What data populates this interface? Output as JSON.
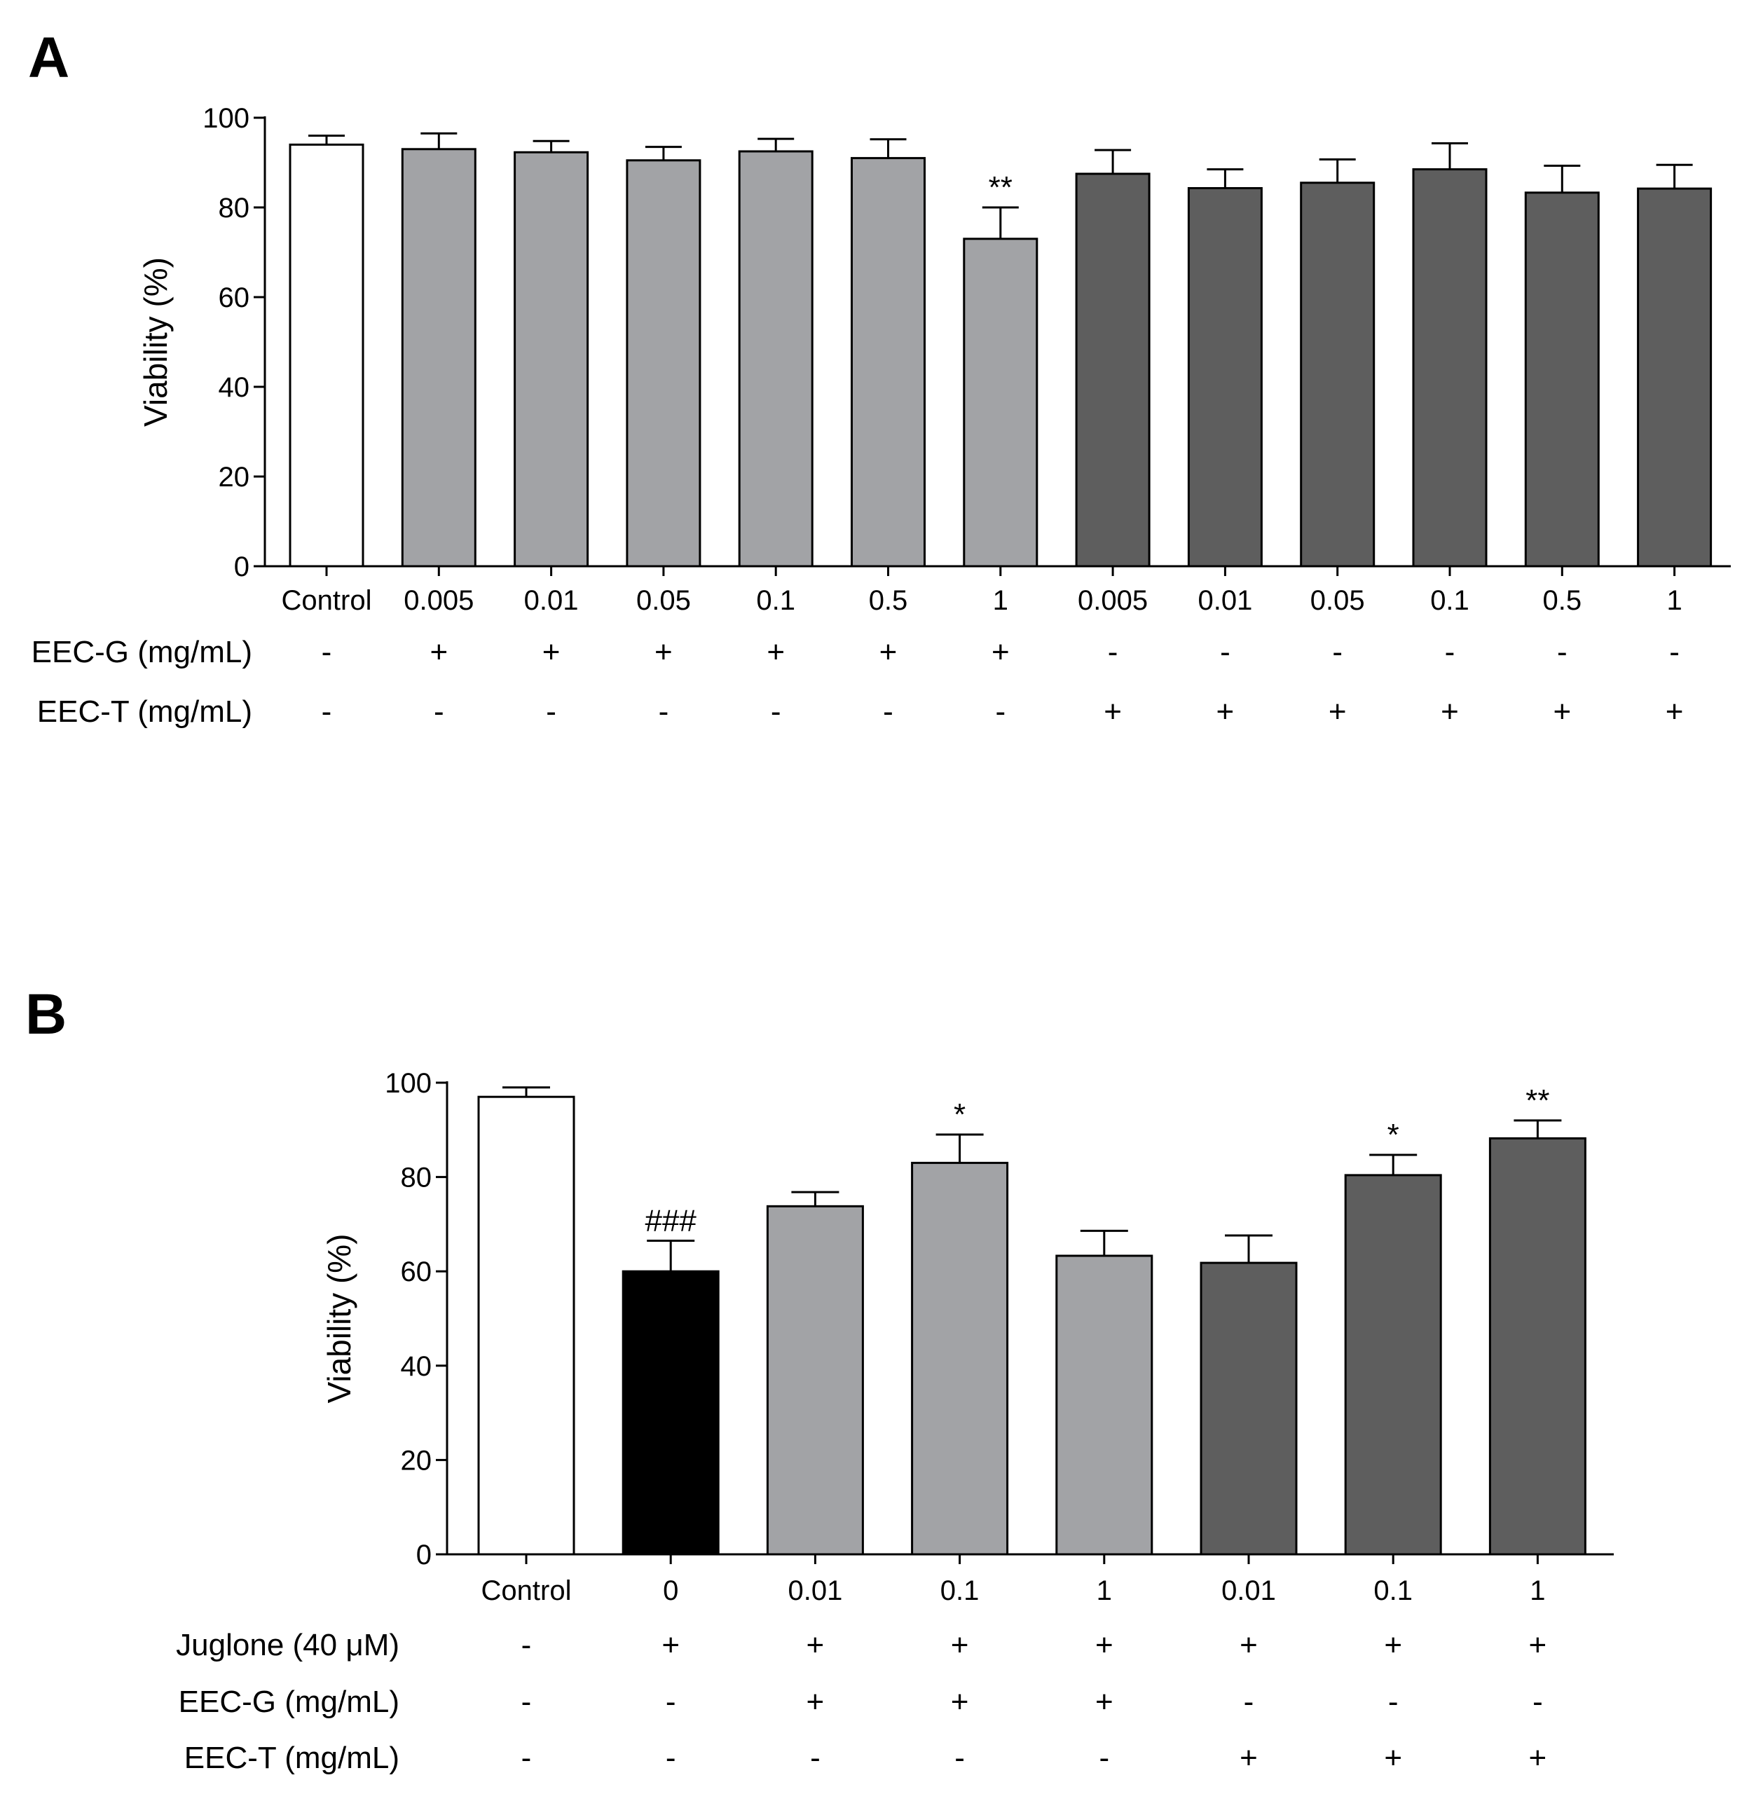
{
  "colors": {
    "white": "#ffffff",
    "black": "#000000",
    "light_gray": "#a2a3a6",
    "dark_gray": "#5e5e5e"
  },
  "chart_data": [
    {
      "panel": "A",
      "type": "bar",
      "title": "",
      "xlabel": "",
      "ylabel": "Viability (%)",
      "ylim": [
        0,
        100
      ],
      "yticks": [
        "0",
        "20",
        "40",
        "60",
        "80",
        "100"
      ],
      "categories": [
        "Control",
        "0.005",
        "0.01",
        "0.05",
        "0.1",
        "0.5",
        "1",
        "0.005",
        "0.01",
        "0.05",
        "0.1",
        "0.5",
        "1"
      ],
      "values": [
        94,
        93,
        92.3,
        90.5,
        92.5,
        91,
        73,
        87.5,
        84.3,
        85.5,
        88.5,
        83.3,
        84.2
      ],
      "errors": [
        2,
        3.5,
        2.5,
        3,
        2.8,
        4.2,
        7,
        5.3,
        4.2,
        5.2,
        5.8,
        6,
        5.3
      ],
      "fill_groups": [
        "white",
        "light_gray",
        "light_gray",
        "light_gray",
        "light_gray",
        "light_gray",
        "light_gray",
        "dark_gray",
        "dark_gray",
        "dark_gray",
        "dark_gray",
        "dark_gray",
        "dark_gray"
      ],
      "significance": [
        "",
        "",
        "",
        "",
        "",
        "",
        "**",
        "",
        "",
        "",
        "",
        "",
        ""
      ],
      "conditions": [
        {
          "label": "EEC-G (mg/mL)",
          "signs": [
            "-",
            "+",
            "+",
            "+",
            "+",
            "+",
            "+",
            "-",
            "-",
            "-",
            "-",
            "-",
            "-"
          ]
        },
        {
          "label": "EEC-T (mg/mL)",
          "signs": [
            "-",
            "-",
            "-",
            "-",
            "-",
            "-",
            "-",
            "+",
            "+",
            "+",
            "+",
            "+",
            "+"
          ]
        }
      ]
    },
    {
      "panel": "B",
      "type": "bar",
      "title": "",
      "xlabel": "",
      "ylabel": "Viability (%)",
      "ylim": [
        0,
        100
      ],
      "yticks": [
        "0",
        "20",
        "40",
        "60",
        "80",
        "100"
      ],
      "categories": [
        "Control",
        "0",
        "0.01",
        "0.1",
        "1",
        "0.01",
        "0.1",
        "1"
      ],
      "values": [
        97,
        60,
        73.8,
        83,
        63.3,
        61.8,
        80.4,
        88.2
      ],
      "errors": [
        2,
        6.5,
        3,
        6,
        5.3,
        5.8,
        4.3,
        3.8
      ],
      "fill_groups": [
        "white",
        "black",
        "light_gray",
        "light_gray",
        "light_gray",
        "dark_gray",
        "dark_gray",
        "dark_gray"
      ],
      "significance": [
        "",
        "###",
        "",
        "*",
        "",
        "",
        "*",
        "**"
      ],
      "conditions": [
        {
          "label": "Juglone (40 μM)",
          "signs": [
            "-",
            "+",
            "+",
            "+",
            "+",
            "+",
            "+",
            "+"
          ]
        },
        {
          "label": "EEC-G (mg/mL)",
          "signs": [
            "-",
            "-",
            "+",
            "+",
            "+",
            "-",
            "-",
            "-"
          ]
        },
        {
          "label": "EEC-T (mg/mL)",
          "signs": [
            "-",
            "-",
            "-",
            "-",
            "-",
            "+",
            "+",
            "+"
          ]
        }
      ]
    }
  ]
}
